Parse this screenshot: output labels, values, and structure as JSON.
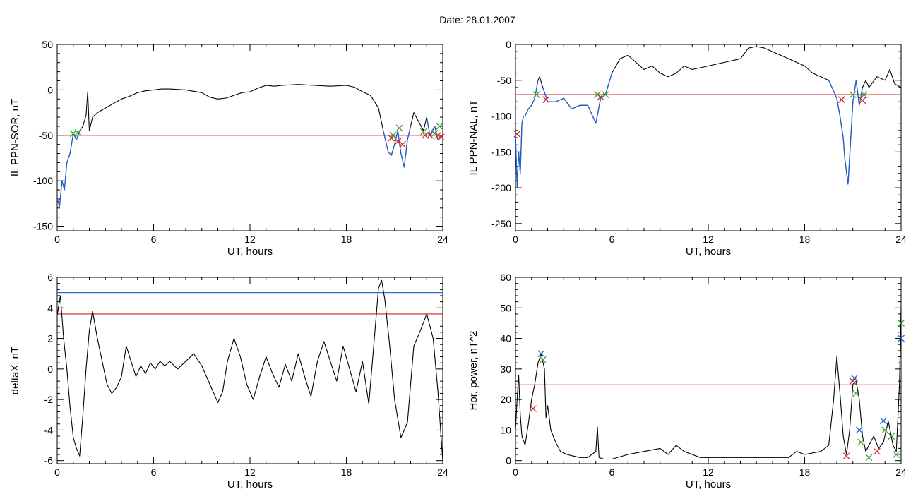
{
  "header": {
    "title": "Date:  28.01.2007"
  },
  "colors": {
    "trace": "#000000",
    "selected": "#1f5fd0",
    "threshold_red": "#d42020",
    "threshold_blue": "#2a6fd6",
    "marker_red": "#d42020",
    "marker_green": "#2ca02c",
    "marker_blue": "#1f5fd0"
  },
  "chart_data": [
    {
      "type": "line",
      "xlabel": "UT, hours",
      "ylabel": "IL PPN-SOR, nT",
      "xlim": [
        0,
        24
      ],
      "ylim": [
        -155,
        50
      ],
      "xticks": [
        0,
        6,
        12,
        18,
        24
      ],
      "yticks": [
        50,
        0,
        -50,
        -100,
        -150
      ],
      "thresholds": [
        {
          "y": -50,
          "color": "red"
        }
      ],
      "series": [
        {
          "x": [
            0,
            0.15,
            0.3,
            0.45,
            0.6,
            0.8,
            1.0,
            1.2,
            1.4,
            1.6,
            1.8,
            1.9,
            2.0,
            2.2,
            2.5,
            3.0,
            3.5,
            4.0,
            4.5,
            5.0,
            5.5,
            6.0,
            6.5,
            7.0,
            8.0,
            9.0,
            9.5,
            10.0,
            10.5,
            11.0,
            11.5,
            12.0,
            12.5,
            13.0,
            13.5,
            14.0,
            15.0,
            16.0,
            17.0,
            18.0,
            18.5,
            19.0,
            19.5,
            20.0,
            20.3,
            20.6,
            20.8,
            21.0,
            21.2,
            21.4,
            21.6,
            21.8,
            22.0,
            22.2,
            22.5,
            22.8,
            23.0,
            23.2,
            23.5,
            23.7,
            24.0
          ],
          "y": [
            -120,
            -128,
            -100,
            -110,
            -80,
            -70,
            -48,
            -55,
            -45,
            -40,
            -28,
            -2,
            -45,
            -30,
            -25,
            -20,
            -15,
            -10,
            -7,
            -3,
            -1,
            0,
            1,
            1,
            0,
            -3,
            -8,
            -10,
            -9,
            -6,
            -3,
            -2,
            2,
            5,
            4,
            5,
            6,
            5,
            4,
            5,
            3,
            -2,
            -6,
            -20,
            -45,
            -68,
            -72,
            -60,
            -45,
            -70,
            -85,
            -55,
            -40,
            -25,
            -35,
            -45,
            -30,
            -50,
            -40,
            -55,
            -50
          ]
        }
      ],
      "markers": {
        "red": [
          [
            20.8,
            -53
          ],
          [
            21.2,
            -57
          ],
          [
            21.5,
            -60
          ],
          [
            22.9,
            -50
          ],
          [
            23.2,
            -50
          ],
          [
            23.7,
            -50
          ],
          [
            23.9,
            -52
          ]
        ],
        "green": [
          [
            1.0,
            -48
          ],
          [
            1.3,
            -47
          ],
          [
            20.9,
            -50
          ],
          [
            21.3,
            -42
          ],
          [
            22.8,
            -46
          ],
          [
            23.5,
            -48
          ],
          [
            23.8,
            -40
          ]
        ]
      }
    },
    {
      "type": "line",
      "xlabel": "UT, hours",
      "ylabel": "IL PPN-NAL, nT",
      "xlim": [
        0,
        24
      ],
      "ylim": [
        -260,
        0
      ],
      "xticks": [
        0,
        6,
        12,
        18,
        24
      ],
      "yticks": [
        0,
        -50,
        -100,
        -150,
        -200,
        -250
      ],
      "thresholds": [
        {
          "y": -70,
          "color": "red"
        }
      ],
      "series": [
        {
          "x": [
            0,
            0.1,
            0.2,
            0.3,
            0.4,
            0.5,
            0.6,
            0.8,
            1.0,
            1.2,
            1.4,
            1.5,
            1.7,
            2.0,
            2.5,
            3.0,
            3.5,
            4.0,
            4.5,
            4.8,
            5.0,
            5.3,
            5.6,
            6.0,
            6.5,
            7.0,
            7.5,
            8.0,
            8.5,
            9.0,
            9.5,
            10.0,
            10.5,
            11.0,
            12.0,
            13.0,
            14.0,
            14.5,
            15.0,
            15.5,
            16.0,
            17.0,
            18.0,
            18.5,
            19.0,
            19.5,
            20.0,
            20.2,
            20.4,
            20.5,
            20.7,
            21.0,
            21.2,
            21.4,
            21.6,
            21.8,
            22.0,
            22.5,
            23.0,
            23.3,
            23.6,
            24.0
          ],
          "y": [
            -125,
            -200,
            -150,
            -180,
            -110,
            -100,
            -100,
            -90,
            -85,
            -75,
            -50,
            -45,
            -60,
            -80,
            -80,
            -75,
            -90,
            -85,
            -85,
            -100,
            -110,
            -75,
            -70,
            -40,
            -20,
            -15,
            -25,
            -35,
            -30,
            -40,
            -45,
            -40,
            -30,
            -35,
            -30,
            -25,
            -20,
            -5,
            -3,
            -5,
            -10,
            -20,
            -30,
            -40,
            -45,
            -50,
            -75,
            -100,
            -130,
            -160,
            -195,
            -80,
            -50,
            -85,
            -60,
            -50,
            -60,
            -45,
            -50,
            -35,
            -55,
            -60
          ]
        }
      ],
      "markers": {
        "red": [
          [
            0.1,
            -125
          ],
          [
            1.9,
            -77
          ],
          [
            5.3,
            -73
          ],
          [
            20.3,
            -77
          ],
          [
            21.6,
            -78
          ]
        ],
        "green": [
          [
            1.3,
            -70
          ],
          [
            5.1,
            -70
          ],
          [
            5.6,
            -70
          ],
          [
            21.0,
            -70
          ],
          [
            21.7,
            -70
          ]
        ]
      }
    },
    {
      "type": "line",
      "xlabel": "UT, hours",
      "ylabel": "deltaX, nT",
      "xlim": [
        0,
        24
      ],
      "ylim": [
        -6.2,
        6
      ],
      "xticks": [
        0,
        6,
        12,
        18,
        24
      ],
      "yticks": [
        6,
        4,
        2,
        0,
        -2,
        -4,
        -6
      ],
      "thresholds": [
        {
          "y": 5.0,
          "color": "blue"
        },
        {
          "y": 3.6,
          "color": "red"
        }
      ],
      "series": [
        {
          "x": [
            0,
            0.2,
            0.4,
            0.6,
            0.8,
            1.0,
            1.2,
            1.4,
            1.6,
            1.8,
            2.0,
            2.2,
            2.5,
            2.8,
            3.1,
            3.4,
            3.7,
            4.0,
            4.3,
            4.6,
            4.9,
            5.2,
            5.5,
            5.8,
            6.1,
            6.4,
            6.7,
            7.0,
            7.5,
            8.0,
            8.5,
            9.0,
            9.5,
            10.0,
            10.3,
            10.6,
            11.0,
            11.4,
            11.8,
            12.2,
            12.6,
            13.0,
            13.4,
            13.8,
            14.2,
            14.6,
            15.0,
            15.4,
            15.8,
            16.2,
            16.6,
            17.0,
            17.4,
            17.8,
            18.2,
            18.6,
            19.0,
            19.4,
            19.7,
            20.0,
            20.2,
            20.4,
            20.7,
            21.0,
            21.4,
            21.8,
            22.2,
            22.6,
            23.0,
            23.4,
            23.7,
            24.0
          ],
          "y": [
            3.5,
            4.8,
            2.0,
            0.0,
            -2.5,
            -4.5,
            -5.2,
            -5.7,
            -3.0,
            0.0,
            2.5,
            3.8,
            2.0,
            0.5,
            -1.0,
            -1.6,
            -1.2,
            -0.5,
            1.5,
            0.5,
            -0.5,
            0.2,
            -0.3,
            0.4,
            0.0,
            0.5,
            0.2,
            0.5,
            0.0,
            0.5,
            1.0,
            0.2,
            -1.0,
            -2.2,
            -1.5,
            0.5,
            2.0,
            0.8,
            -1.0,
            -2.0,
            -0.5,
            0.8,
            -0.3,
            -1.2,
            0.3,
            -0.8,
            1.0,
            -0.5,
            -1.8,
            0.5,
            1.8,
            0.5,
            -0.8,
            1.5,
            0.0,
            -1.5,
            0.5,
            -2.3,
            1.5,
            5.3,
            5.8,
            4.5,
            1.5,
            -2.0,
            -4.5,
            -3.5,
            1.5,
            2.5,
            3.6,
            2.0,
            -1.5,
            -6.0
          ]
        }
      ]
    },
    {
      "type": "line",
      "xlabel": "UT, hours",
      "ylabel": "Hor. power, nT^2",
      "xlim": [
        0,
        24
      ],
      "ylim": [
        -1,
        60
      ],
      "xticks": [
        0,
        6,
        12,
        18,
        24
      ],
      "yticks": [
        60,
        50,
        40,
        30,
        20,
        10,
        0
      ],
      "thresholds": [
        {
          "y": 24.8,
          "color": "red"
        }
      ],
      "series": [
        {
          "x": [
            0,
            0.1,
            0.2,
            0.3,
            0.4,
            0.6,
            0.8,
            1.0,
            1.2,
            1.4,
            1.6,
            1.8,
            1.9,
            2.0,
            2.2,
            2.5,
            2.8,
            3.2,
            3.6,
            4.0,
            4.5,
            5.0,
            5.1,
            5.2,
            5.5,
            6.0,
            7.0,
            8.0,
            9.0,
            9.5,
            10.0,
            10.5,
            11.0,
            11.5,
            12.0,
            13.0,
            14.0,
            15.0,
            16.0,
            17.0,
            17.5,
            18.0,
            19.0,
            19.5,
            19.8,
            20.0,
            20.2,
            20.4,
            20.6,
            20.8,
            21.0,
            21.2,
            21.4,
            21.6,
            21.8,
            22.0,
            22.3,
            22.6,
            22.9,
            23.2,
            23.5,
            23.7,
            23.9,
            24.0
          ],
          "y": [
            10,
            20,
            28,
            15,
            8,
            5,
            12,
            20,
            25,
            32,
            35,
            30,
            14,
            18,
            10,
            6,
            3,
            2,
            1.5,
            1,
            1,
            3,
            11,
            1,
            0.5,
            0.5,
            2,
            3,
            4,
            2,
            5,
            3,
            2,
            1,
            1,
            1,
            1,
            1,
            1,
            1,
            3,
            2,
            3,
            5,
            20,
            34,
            22,
            8,
            2,
            10,
            25,
            26,
            20,
            8,
            3,
            5,
            8,
            4,
            6,
            13,
            5,
            3,
            25,
            50
          ]
        }
      ],
      "markers": {
        "red": [
          [
            1.1,
            17
          ],
          [
            20.6,
            1.5
          ],
          [
            21.0,
            26
          ],
          [
            22.5,
            3
          ]
        ],
        "blue": [
          [
            1.6,
            35
          ],
          [
            21.1,
            27
          ],
          [
            21.4,
            10
          ],
          [
            22.9,
            13
          ],
          [
            24.0,
            40
          ]
        ],
        "green": [
          [
            1.7,
            33
          ],
          [
            21.2,
            22
          ],
          [
            21.5,
            6
          ],
          [
            22.0,
            1
          ],
          [
            23.0,
            10
          ],
          [
            23.4,
            8
          ],
          [
            23.7,
            2
          ],
          [
            24.0,
            45
          ]
        ]
      }
    }
  ]
}
